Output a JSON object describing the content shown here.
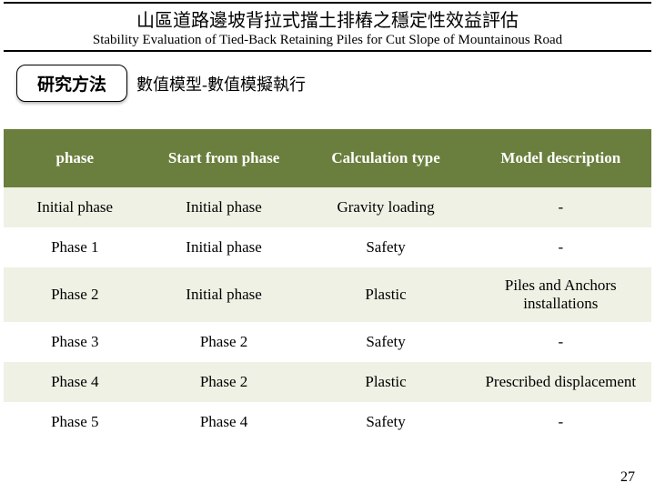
{
  "title": {
    "zh": "山區道路邊坡背拉式擋土排樁之穩定性效益評估",
    "en": "Stability Evaluation of Tied-Back Retaining Piles for Cut Slope of Mountainous Road"
  },
  "method": {
    "button": "研究方法",
    "subtitle": "數值模型-數值模擬執行"
  },
  "table": {
    "header_bg": "#6a7f3d",
    "header_fg": "#ffffff",
    "row_even_bg": "#eef1e4",
    "row_odd_bg": "#ffffff",
    "columns": [
      "phase",
      "Start from phase",
      "Calculation type",
      "Model description"
    ],
    "rows": [
      [
        "Initial phase",
        "Initial phase",
        "Gravity loading",
        "-"
      ],
      [
        "Phase 1",
        "Initial phase",
        "Safety",
        "-"
      ],
      [
        "Phase 2",
        "Initial phase",
        "Plastic",
        "Piles and Anchors installations"
      ],
      [
        "Phase 3",
        "Phase 2",
        "Safety",
        "-"
      ],
      [
        "Phase 4",
        "Phase 2",
        "Plastic",
        "Prescribed displacement"
      ],
      [
        "Phase 5",
        "Phase 4",
        "Safety",
        "-"
      ]
    ]
  },
  "page_number": "27"
}
